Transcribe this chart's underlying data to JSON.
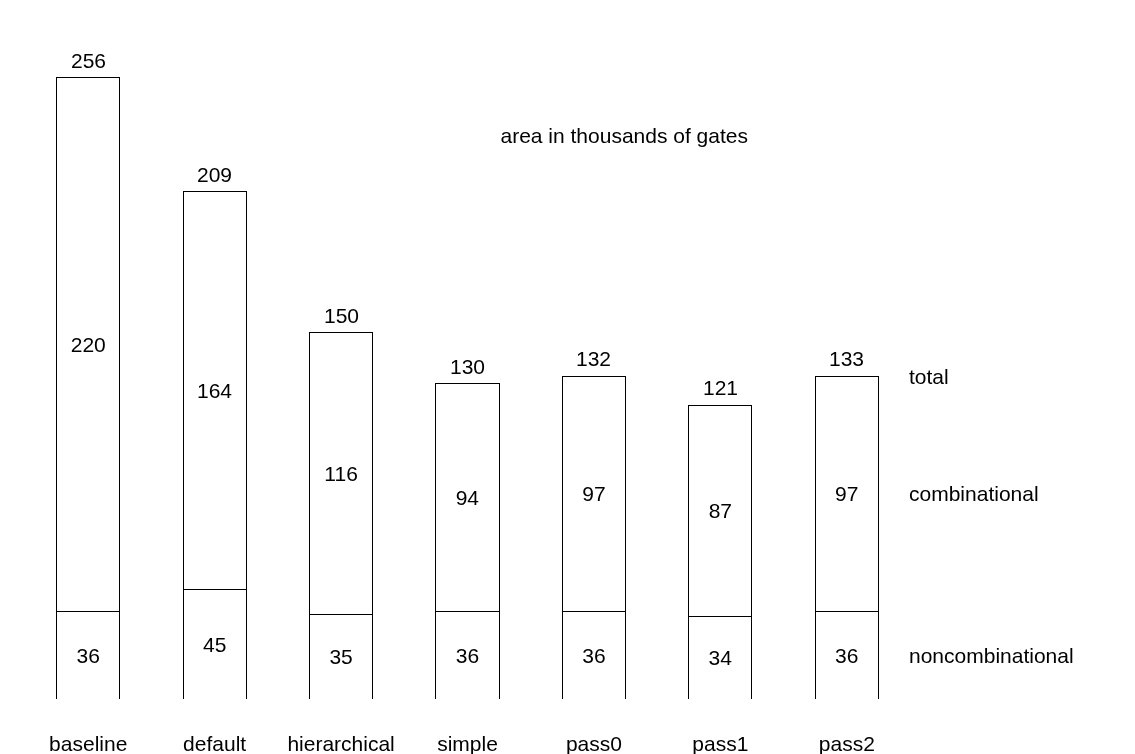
{
  "chart_data": {
    "type": "bar",
    "title": "area in thousands of gates",
    "categories": [
      "baseline",
      "default",
      "hierarchical",
      "simple",
      "pass0",
      "pass1",
      "pass2"
    ],
    "stacked": true,
    "series": [
      {
        "name": "noncombinational",
        "color": "#ffffff",
        "values": [
          36,
          45,
          35,
          36,
          36,
          34,
          36
        ]
      },
      {
        "name": "combinational",
        "color": "#ffffff",
        "values": [
          220,
          164,
          116,
          94,
          97,
          87,
          97
        ]
      }
    ],
    "totals": [
      "256",
      "209",
      "150",
      "130",
      "132",
      "121",
      "133"
    ],
    "annotations": [
      {
        "text": "total",
        "x": "pass2",
        "y": 133
      }
    ],
    "data_labels": true,
    "legend": false,
    "grid": false
  }
}
